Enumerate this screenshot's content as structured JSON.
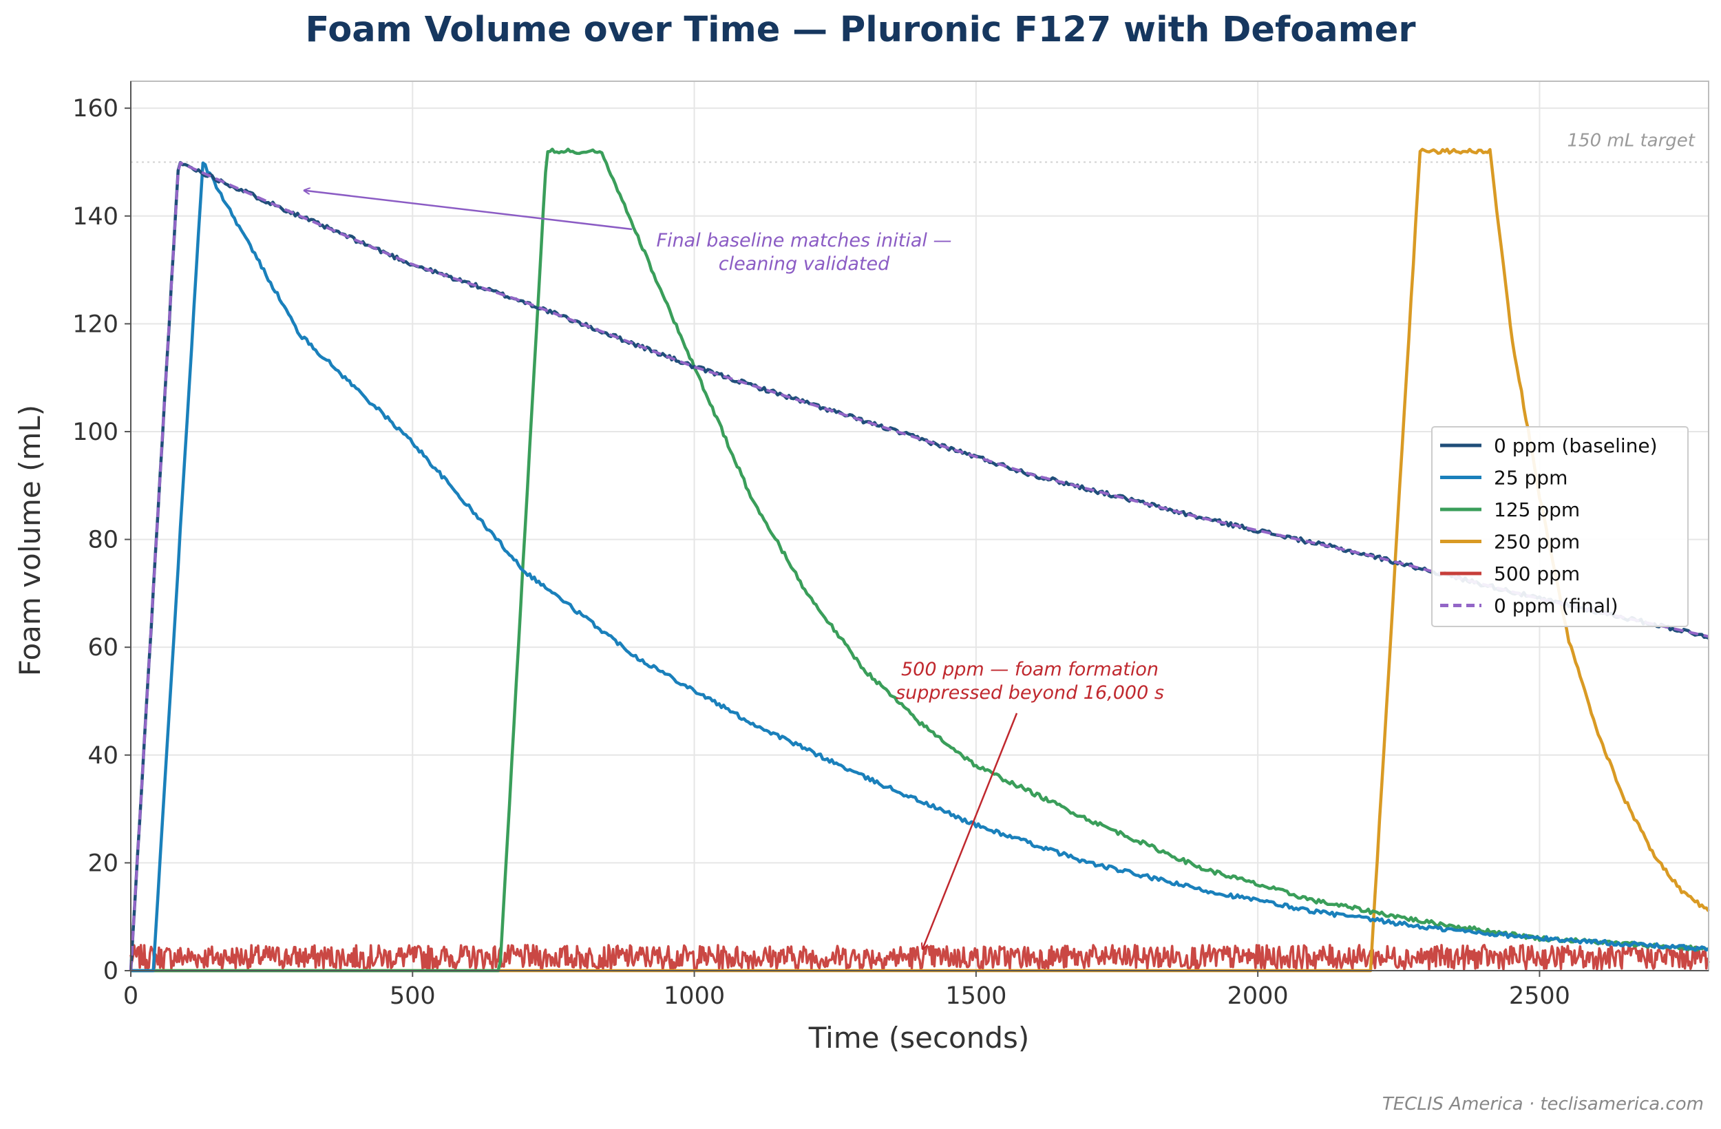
{
  "chart_data": {
    "type": "line",
    "title": "Foam Volume over Time — Pluronic F127 with Defoamer",
    "xlabel": "Time (seconds)",
    "ylabel": "Foam volume (mL)",
    "xlim": [
      0,
      2800
    ],
    "ylim": [
      0,
      165
    ],
    "xticks": [
      0,
      500,
      1000,
      1500,
      2000,
      2500
    ],
    "yticks": [
      0,
      20,
      40,
      60,
      80,
      100,
      120,
      140,
      160
    ],
    "grid": true,
    "legend_position": "center-right",
    "reference_line": {
      "y": 150,
      "label": "150 mL target"
    },
    "series": [
      {
        "name": "0 ppm (baseline)",
        "color": "#1f4e79",
        "style": "solid",
        "points": [
          [
            0,
            0
          ],
          [
            85,
            150
          ],
          [
            300,
            140
          ],
          [
            500,
            131
          ],
          [
            700,
            124
          ],
          [
            1000,
            112
          ],
          [
            1300,
            102
          ],
          [
            1600,
            92
          ],
          [
            1900,
            84
          ],
          [
            2200,
            77
          ],
          [
            2500,
            69
          ],
          [
            2800,
            62
          ]
        ]
      },
      {
        "name": "25 ppm",
        "color": "#1a80bb",
        "style": "solid",
        "points": [
          [
            0,
            0
          ],
          [
            40,
            0
          ],
          [
            128,
            150
          ],
          [
            300,
            118
          ],
          [
            500,
            98
          ],
          [
            700,
            74
          ],
          [
            900,
            58
          ],
          [
            1100,
            46
          ],
          [
            1300,
            36
          ],
          [
            1500,
            27
          ],
          [
            1700,
            20
          ],
          [
            1900,
            15
          ],
          [
            2100,
            11
          ],
          [
            2300,
            8
          ],
          [
            2500,
            6
          ],
          [
            2800,
            4
          ]
        ]
      },
      {
        "name": "125 ppm",
        "color": "#3a9e5a",
        "style": "solid",
        "points": [
          [
            0,
            0
          ],
          [
            655,
            0
          ],
          [
            738,
            152
          ],
          [
            835,
            152
          ],
          [
            900,
            136
          ],
          [
            1000,
            112
          ],
          [
            1100,
            88
          ],
          [
            1200,
            70
          ],
          [
            1300,
            56
          ],
          [
            1400,
            46
          ],
          [
            1500,
            38
          ],
          [
            1700,
            28
          ],
          [
            1900,
            19
          ],
          [
            2100,
            13
          ],
          [
            2300,
            9
          ],
          [
            2500,
            6
          ],
          [
            2800,
            4
          ]
        ]
      },
      {
        "name": "250 ppm",
        "color": "#d99a24",
        "style": "solid",
        "points": [
          [
            0,
            0
          ],
          [
            2200,
            0
          ],
          [
            2288,
            152
          ],
          [
            2412,
            152
          ],
          [
            2450,
            118
          ],
          [
            2500,
            88
          ],
          [
            2550,
            62
          ],
          [
            2600,
            45
          ],
          [
            2650,
            32
          ],
          [
            2700,
            22
          ],
          [
            2750,
            15
          ],
          [
            2800,
            11
          ]
        ]
      },
      {
        "name": "500 ppm",
        "color": "#c73e3a",
        "style": "solid",
        "constant": 2.5,
        "noise": 2.5
      },
      {
        "name": "0 ppm (final)",
        "color": "#9366c7",
        "style": "dashed",
        "points": [
          [
            0,
            0
          ],
          [
            85,
            150
          ],
          [
            300,
            140
          ],
          [
            500,
            131
          ],
          [
            700,
            124
          ],
          [
            1000,
            112
          ],
          [
            1300,
            102
          ],
          [
            1600,
            92
          ],
          [
            1900,
            84
          ],
          [
            2200,
            77
          ],
          [
            2500,
            69
          ],
          [
            2800,
            62
          ]
        ]
      }
    ],
    "annotations": [
      {
        "text": [
          "Final baseline matches initial —",
          "cleaning validated"
        ],
        "color": "#8b5cc4",
        "xytext": [
          1200,
          133
        ],
        "xy": [
          310,
          145
        ]
      },
      {
        "text": [
          "500 ppm — foam formation",
          "suppressed beyond 16,000 s"
        ],
        "color": "#c0282e",
        "xytext": [
          1600,
          53
        ],
        "xy": [
          1405,
          4
        ]
      }
    ]
  },
  "footer": {
    "credit": "TECLIS America  ·  teclisamerica.com"
  }
}
